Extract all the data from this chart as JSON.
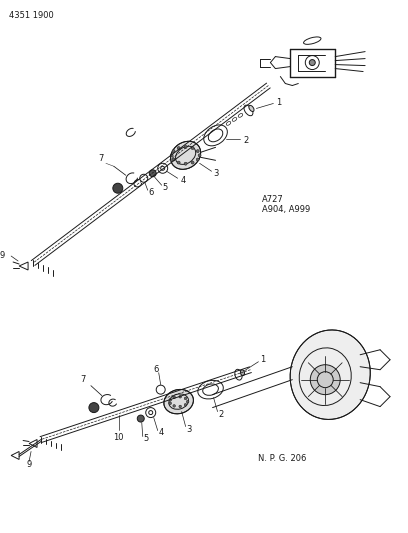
{
  "page_id": "4351 1900",
  "bg_color": "#ffffff",
  "text_color": "#1a1a1a",
  "annotation1_line1": "A727",
  "annotation1_line2": "A904, A999",
  "annotation2": "N. P. G. 206",
  "fig_width": 4.08,
  "fig_height": 5.33,
  "dpi": 100
}
